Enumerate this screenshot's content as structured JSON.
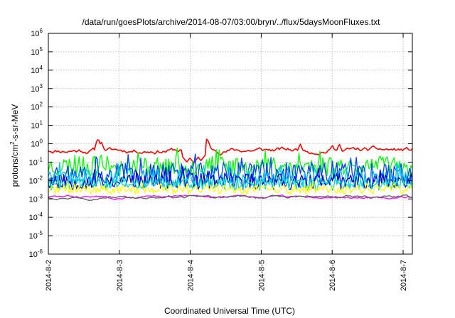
{
  "chart_data": {
    "type": "line",
    "title": "/data/run/goesPlots/archive/2014-08-07/03:00/bryn/../flux/5daysMoonFluxes.txt",
    "xlabel": "Coordinated Universal Time (UTC)",
    "ylabel": {
      "base": "protons/cm",
      "sup": "2",
      "rest": "-s-sr-MeV"
    },
    "yscale": "log",
    "ylim_exp": [
      -6,
      6
    ],
    "ytick_exps": [
      -6,
      -5,
      -4,
      -3,
      -2,
      -1,
      0,
      1,
      2,
      3,
      4,
      5,
      6
    ],
    "ytick_base": "10",
    "xlim_days": [
      0,
      5.13
    ],
    "xticks": [
      {
        "label": "2014-8-2",
        "day": 0
      },
      {
        "label": "2014-8-3",
        "day": 1
      },
      {
        "label": "2014-8-4",
        "day": 2
      },
      {
        "label": "2014-8-5",
        "day": 3
      },
      {
        "label": "2014-8-6",
        "day": 4
      },
      {
        "label": "2014-8-7",
        "day": 5
      }
    ],
    "grid": true,
    "series": [
      {
        "color": "#ff0000",
        "level": 0.45,
        "var": 0.18,
        "seed": 11,
        "wiggle": "smooth",
        "events": [
          [
            0.7,
            2.0
          ],
          [
            0.75,
            1.2
          ],
          [
            2.22,
            2.2
          ],
          [
            2.25,
            1.5
          ],
          [
            3.55,
            1.0
          ],
          [
            4.0,
            0.9
          ],
          [
            4.1,
            1.0
          ]
        ],
        "dips": [
          [
            1.95,
            0.1
          ],
          [
            2.05,
            0.09
          ],
          [
            2.15,
            0.12
          ]
        ]
      },
      {
        "color": "#00ff00",
        "level": 0.06,
        "var": 0.55,
        "seed": 23,
        "wiggle": "spiky",
        "events": [],
        "dips": []
      },
      {
        "color": "#0040ff",
        "level": 0.025,
        "var": 0.6,
        "seed": 37,
        "wiggle": "spiky",
        "events": [],
        "dips": []
      },
      {
        "color": "#00c0ff",
        "level": 0.012,
        "var": 0.5,
        "seed": 41,
        "wiggle": "spiky",
        "events": [],
        "dips": []
      },
      {
        "color": "#0000c0",
        "level": 0.009,
        "var": 0.45,
        "seed": 53,
        "wiggle": "spiky",
        "events": [],
        "dips": []
      },
      {
        "color": "#00d8c0",
        "level": 0.0065,
        "var": 0.35,
        "seed": 61,
        "wiggle": "spiky",
        "events": [],
        "dips": []
      },
      {
        "color": "#ffff00",
        "level": 0.0032,
        "var": 0.25,
        "seed": 71,
        "wiggle": "spiky",
        "events": [],
        "dips": []
      },
      {
        "color": "#ff00ff",
        "level": 0.0013,
        "var": 0.08,
        "seed": 83,
        "wiggle": "smooth",
        "events": [],
        "dips": []
      },
      {
        "color": "#606060",
        "level": 0.00125,
        "var": 0.09,
        "seed": 97,
        "wiggle": "smooth",
        "events": [],
        "dips": []
      }
    ]
  }
}
